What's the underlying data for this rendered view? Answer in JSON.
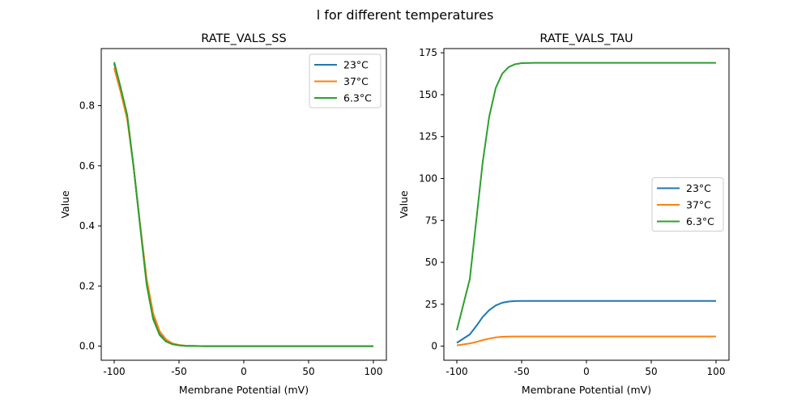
{
  "suptitle": "l for different temperatures",
  "colors": {
    "23°C": "#1f77b4",
    "37°C": "#ff7f0e",
    "6.3°C": "#2ca02c"
  },
  "chart_data": [
    {
      "type": "line",
      "title": "RATE_VALS_SS",
      "xlabel": "Membrane Potential (mV)",
      "ylabel": "Value",
      "xlim": [
        -110,
        110
      ],
      "ylim": [
        -0.047,
        0.99
      ],
      "xticks": [
        -100,
        -50,
        0,
        50,
        100
      ],
      "yticks": [
        0.0,
        0.2,
        0.4,
        0.6,
        0.8
      ],
      "ytick_labels": [
        "0.0",
        "0.2",
        "0.4",
        "0.6",
        "0.8"
      ],
      "legend": "top-right",
      "x": [
        -100,
        -95,
        -90,
        -85,
        -80,
        -75,
        -70,
        -65,
        -60,
        -55,
        -50,
        -45,
        -40,
        -30,
        0,
        50,
        100
      ],
      "series": [
        {
          "name": "23°C",
          "values": [
            0.94,
            0.855,
            0.765,
            0.595,
            0.4,
            0.21,
            0.095,
            0.04,
            0.017,
            0.007,
            0.003,
            0.001,
            0.0005,
            0,
            0,
            0,
            0
          ]
        },
        {
          "name": "37°C",
          "values": [
            0.925,
            0.845,
            0.755,
            0.595,
            0.405,
            0.225,
            0.11,
            0.05,
            0.022,
            0.009,
            0.004,
            0.0015,
            0.0006,
            0,
            0,
            0,
            0
          ]
        },
        {
          "name": "6.3°C",
          "values": [
            0.945,
            0.86,
            0.77,
            0.595,
            0.4,
            0.205,
            0.09,
            0.037,
            0.015,
            0.006,
            0.0025,
            0.001,
            0.0004,
            0,
            0,
            0,
            0
          ]
        }
      ]
    },
    {
      "type": "line",
      "title": "RATE_VALS_TAU",
      "xlabel": "Membrane Potential (mV)",
      "ylabel": "Value",
      "xlim": [
        -110,
        110
      ],
      "ylim": [
        -8.4,
        177.5
      ],
      "xticks": [
        -100,
        -50,
        0,
        50,
        100
      ],
      "yticks": [
        0,
        25,
        50,
        75,
        100,
        125,
        150,
        175
      ],
      "ytick_labels": [
        "0",
        "25",
        "50",
        "75",
        "100",
        "125",
        "150",
        "175"
      ],
      "legend": "center-right",
      "x": [
        -100,
        -90,
        -85,
        -80,
        -75,
        -70,
        -65,
        -60,
        -55,
        -50,
        -40,
        0,
        50,
        100
      ],
      "series": [
        {
          "name": "23°C",
          "values": [
            2,
            7,
            12,
            17.5,
            21.5,
            24.3,
            25.9,
            26.6,
            26.9,
            27,
            27,
            27,
            27,
            27
          ]
        },
        {
          "name": "37°C",
          "values": [
            0.5,
            1.6,
            2.5,
            3.6,
            4.5,
            5.2,
            5.6,
            5.75,
            5.8,
            5.8,
            5.8,
            5.8,
            5.8,
            5.8
          ]
        },
        {
          "name": "6.3°C",
          "values": [
            9.5,
            40,
            75,
            110,
            137,
            154,
            162.5,
            166.5,
            168.2,
            168.8,
            169,
            169,
            169,
            169
          ]
        }
      ]
    }
  ]
}
